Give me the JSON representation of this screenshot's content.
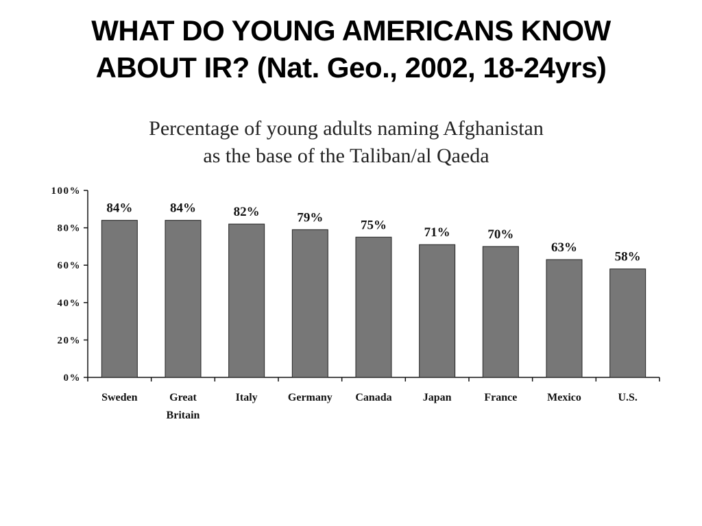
{
  "slide": {
    "title_line1": "WHAT DO YOUNG AMERICANS KNOW",
    "title_line2": "ABOUT IR? (Nat. Geo., 2002, 18-24yrs)"
  },
  "chart_data": {
    "type": "bar",
    "title_line1": "Percentage of young adults naming Afghanistan",
    "title_line2": "as the base of the Taliban/al Qaeda",
    "categories": [
      [
        "Sweden"
      ],
      [
        "Great",
        "Britain"
      ],
      [
        "Italy"
      ],
      [
        "Germany"
      ],
      [
        "Canada"
      ],
      [
        "Japan"
      ],
      [
        "France"
      ],
      [
        "Mexico"
      ],
      [
        "U.S."
      ]
    ],
    "values": [
      84,
      84,
      82,
      79,
      75,
      71,
      70,
      63,
      58
    ],
    "data_labels": [
      "84%",
      "84%",
      "82%",
      "79%",
      "75%",
      "71%",
      "70%",
      "63%",
      "58%"
    ],
    "ylim": [
      0,
      100
    ],
    "yticks": [
      0,
      20,
      40,
      60,
      80,
      100
    ],
    "ytick_labels": [
      "0%",
      "20%",
      "40%",
      "60%",
      "80%",
      "100%"
    ],
    "grid": false,
    "legend": "none",
    "bar_color": "#777777"
  }
}
